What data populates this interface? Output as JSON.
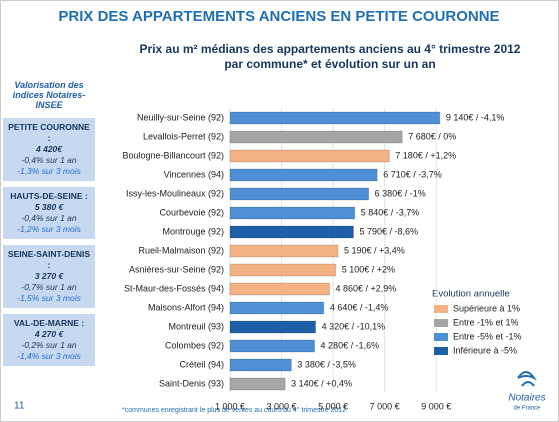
{
  "header": {
    "title": "PRIX DES APPARTEMENTS ANCIENS EN PETITE COURONNE"
  },
  "chart_data": {
    "type": "hbar",
    "subtitle": [
      "Prix au m² médians des appartements anciens au 4° trimestre 2012",
      "par commune* et évolution sur un an"
    ],
    "categories": [
      "Neuilly-sur-Seine (92)",
      "Levallois-Perret (92)",
      "Boulogne-Billancourt (92)",
      "Vincennes (94)",
      "Issy-les-Moulineaux (92)",
      "Courbevoie (92)",
      "Montrouge (92)",
      "Rueil-Malmaison (92)",
      "Asnières-sur-Seine (92)",
      "St-Maur-des-Fossés (94)",
      "Maisons-Alfort (94)",
      "Montreuil (93)",
      "Colombes (92)",
      "Créteil (94)",
      "Saint-Denis (93)"
    ],
    "values": [
      9140,
      7680,
      7180,
      6710,
      6380,
      5840,
      5790,
      5190,
      5100,
      4860,
      4640,
      4320,
      4280,
      3380,
      3140
    ],
    "value_labels": [
      "9 140€ / -4,1%",
      "7 680€ / 0%",
      "7 180€ / +1,2%",
      "6 710€ / -3,7%",
      "6 380€ / -1%",
      "5 840€ / -3,7%",
      "5 790€ / -8,6%",
      "5 190€ / +3,4%",
      "5 100€ / +2%",
      "4 860€ / +2,9%",
      "4 640€ / -1,4%",
      "4 320€ / -10,1%",
      "4 280€ / -1,6%",
      "3 380€ / -3,5%",
      "3 140€ / +0,4%"
    ],
    "colors": [
      "#4f8fd6",
      "#a6a6a6",
      "#f4b183",
      "#4f8fd6",
      "#4f8fd6",
      "#4f8fd6",
      "#1f5fa8",
      "#f4b183",
      "#f4b183",
      "#f4b183",
      "#4f8fd6",
      "#1f5fa8",
      "#4f8fd6",
      "#4f8fd6",
      "#a6a6a6"
    ],
    "xlim": [
      1000,
      10000
    ],
    "xticks": [
      {
        "value": 1000,
        "label": "1 000 €"
      },
      {
        "value": 3000,
        "label": "3 000 €"
      },
      {
        "value": 5000,
        "label": "5 000 €"
      },
      {
        "value": 7000,
        "label": "7 000 €"
      },
      {
        "value": 9000,
        "label": "9 000 €"
      }
    ],
    "grid": true,
    "legend_title": "Evolution annuelle",
    "legend": [
      {
        "name": "Supérieure à 1%",
        "color": "#f4b183"
      },
      {
        "name": "Entre -1% et 1%",
        "color": "#a6a6a6"
      },
      {
        "name": "Entre -5% et -1%",
        "color": "#4f8fd6"
      },
      {
        "name": "Inférieure à -5%",
        "color": "#1f5fa8"
      }
    ],
    "footnote": "*communes enregistrant le plus de ventes au cours du 4° trimestre 2012"
  },
  "sidebar": {
    "title": "Valorisation des indices Notaires-INSEE",
    "boxes": [
      {
        "name": "PETITE COURONNE :",
        "price": "4 420€",
        "year": "-0,4% sur 1 an",
        "quarter": "-1,3% sur 3 mois"
      },
      {
        "name": "HAUTS-DE-SEINE :",
        "price": "5 380 €",
        "year": "-0,4% sur 1 an",
        "quarter": "-1,2% sur 3 mois"
      },
      {
        "name": "SEINE-SAINT-DENIS :",
        "price": "3 270 €",
        "year": "-0,7% sur 1 an",
        "quarter": "-1,5% sur 3 mois"
      },
      {
        "name": "VAL-DE-MARNE :",
        "price": "4 270 €",
        "year": "-0,2% sur 1 an",
        "quarter": "-1,4% sur 3 mois"
      }
    ]
  },
  "footer": {
    "page": "11",
    "logo": "Notaires",
    "logo_sub": "de France"
  }
}
